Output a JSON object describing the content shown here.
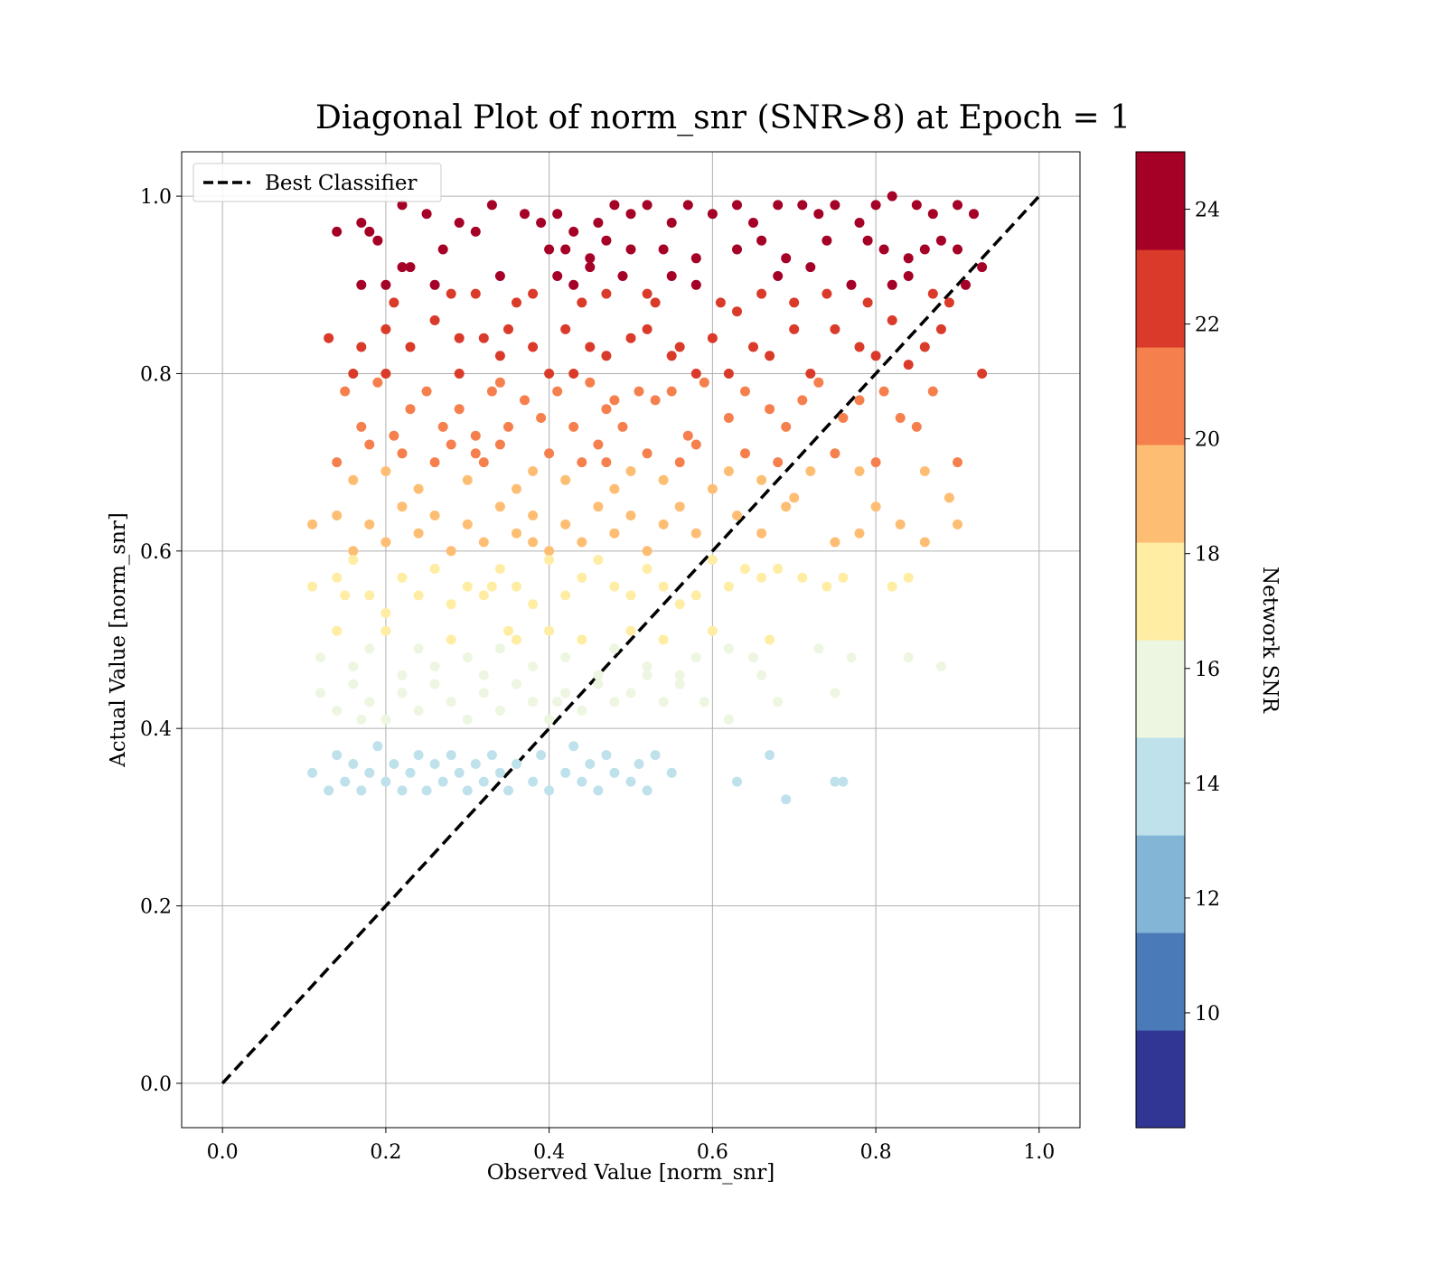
{
  "chart_data": {
    "type": "scatter",
    "title": "Diagonal Plot of norm_snr (SNR>8) at Epoch = 1",
    "xlabel": "Observed Value [norm_snr]",
    "ylabel": "Actual Value [norm_snr]",
    "xlim": [
      -0.05,
      1.05
    ],
    "ylim": [
      -0.05,
      1.05
    ],
    "x_ticks": [
      "0.0",
      "0.2",
      "0.4",
      "0.6",
      "0.8",
      "1.0"
    ],
    "y_ticks": [
      "0.0",
      "0.2",
      "0.4",
      "0.6",
      "0.8",
      "1.0"
    ],
    "grid": true,
    "legend": {
      "placement": "top-left",
      "entries": [
        {
          "label": "Best Classifier",
          "style": "dashed",
          "color": "#000000"
        }
      ]
    },
    "reference_line": {
      "name": "Best Classifier",
      "x": [
        0.0,
        1.0
      ],
      "y": [
        0.0,
        1.0
      ],
      "style": "dashed"
    },
    "colorbar": {
      "label": "Network SNR",
      "range": [
        8,
        25
      ],
      "ticks": [
        "10",
        "12",
        "14",
        "16",
        "18",
        "20",
        "22",
        "24"
      ],
      "tick_values": [
        10,
        12,
        14,
        16,
        18,
        20,
        22,
        24
      ],
      "colors": [
        "#313695",
        "#4575b4",
        "#74add1",
        "#abd9e9",
        "#e0f3f8",
        "#fee090",
        "#fdae61",
        "#f46d43",
        "#d73027",
        "#a50026"
      ],
      "display_colors": [
        "#313695",
        "#4a7ab8",
        "#82b5d6",
        "#bee1ec",
        "#edf6e0",
        "#feeda3",
        "#fdbe74",
        "#f5804e",
        "#da3a2a",
        "#a50026"
      ]
    },
    "points": [
      [
        0.14,
        0.96
      ],
      [
        0.17,
        0.97
      ],
      [
        0.18,
        0.96
      ],
      [
        0.22,
        0.99
      ],
      [
        0.25,
        0.98
      ],
      [
        0.27,
        0.94
      ],
      [
        0.29,
        0.97
      ],
      [
        0.31,
        0.96
      ],
      [
        0.33,
        0.99
      ],
      [
        0.37,
        0.98
      ],
      [
        0.39,
        0.97
      ],
      [
        0.41,
        0.98
      ],
      [
        0.43,
        0.96
      ],
      [
        0.46,
        0.97
      ],
      [
        0.48,
        0.99
      ],
      [
        0.5,
        0.98
      ],
      [
        0.52,
        0.99
      ],
      [
        0.55,
        0.97
      ],
      [
        0.57,
        0.99
      ],
      [
        0.6,
        0.98
      ],
      [
        0.63,
        0.99
      ],
      [
        0.65,
        0.97
      ],
      [
        0.68,
        0.99
      ],
      [
        0.71,
        0.99
      ],
      [
        0.73,
        0.98
      ],
      [
        0.75,
        0.99
      ],
      [
        0.78,
        0.97
      ],
      [
        0.8,
        0.99
      ],
      [
        0.82,
        1.0
      ],
      [
        0.85,
        0.99
      ],
      [
        0.87,
        0.98
      ],
      [
        0.9,
        0.99
      ],
      [
        0.92,
        0.98
      ],
      [
        0.4,
        0.94
      ],
      [
        0.42,
        0.94
      ],
      [
        0.45,
        0.93
      ],
      [
        0.5,
        0.94
      ],
      [
        0.54,
        0.94
      ],
      [
        0.58,
        0.93
      ],
      [
        0.63,
        0.94
      ],
      [
        0.69,
        0.93
      ],
      [
        0.74,
        0.95
      ],
      [
        0.79,
        0.95
      ],
      [
        0.81,
        0.94
      ],
      [
        0.84,
        0.93
      ],
      [
        0.86,
        0.94
      ],
      [
        0.88,
        0.95
      ],
      [
        0.9,
        0.94
      ],
      [
        0.19,
        0.95
      ],
      [
        0.47,
        0.95
      ],
      [
        0.66,
        0.95
      ],
      [
        0.17,
        0.9
      ],
      [
        0.2,
        0.9
      ],
      [
        0.22,
        0.92
      ],
      [
        0.23,
        0.92
      ],
      [
        0.26,
        0.9
      ],
      [
        0.28,
        0.89
      ],
      [
        0.31,
        0.89
      ],
      [
        0.34,
        0.91
      ],
      [
        0.36,
        0.88
      ],
      [
        0.38,
        0.89
      ],
      [
        0.41,
        0.91
      ],
      [
        0.43,
        0.9
      ],
      [
        0.45,
        0.92
      ],
      [
        0.47,
        0.89
      ],
      [
        0.49,
        0.91
      ],
      [
        0.52,
        0.89
      ],
      [
        0.55,
        0.91
      ],
      [
        0.58,
        0.9
      ],
      [
        0.61,
        0.88
      ],
      [
        0.63,
        0.87
      ],
      [
        0.66,
        0.89
      ],
      [
        0.68,
        0.91
      ],
      [
        0.7,
        0.88
      ],
      [
        0.72,
        0.92
      ],
      [
        0.74,
        0.89
      ],
      [
        0.77,
        0.9
      ],
      [
        0.79,
        0.88
      ],
      [
        0.82,
        0.9
      ],
      [
        0.84,
        0.91
      ],
      [
        0.87,
        0.89
      ],
      [
        0.89,
        0.88
      ],
      [
        0.91,
        0.9
      ],
      [
        0.93,
        0.92
      ],
      [
        0.21,
        0.88
      ],
      [
        0.44,
        0.88
      ],
      [
        0.53,
        0.88
      ],
      [
        0.13,
        0.84
      ],
      [
        0.16,
        0.8
      ],
      [
        0.17,
        0.83
      ],
      [
        0.2,
        0.85
      ],
      [
        0.23,
        0.83
      ],
      [
        0.26,
        0.86
      ],
      [
        0.29,
        0.84
      ],
      [
        0.32,
        0.84
      ],
      [
        0.35,
        0.85
      ],
      [
        0.38,
        0.83
      ],
      [
        0.4,
        0.8
      ],
      [
        0.42,
        0.85
      ],
      [
        0.45,
        0.83
      ],
      [
        0.47,
        0.82
      ],
      [
        0.5,
        0.84
      ],
      [
        0.52,
        0.85
      ],
      [
        0.55,
        0.82
      ],
      [
        0.58,
        0.8
      ],
      [
        0.6,
        0.84
      ],
      [
        0.62,
        0.8
      ],
      [
        0.65,
        0.83
      ],
      [
        0.67,
        0.82
      ],
      [
        0.7,
        0.85
      ],
      [
        0.72,
        0.8
      ],
      [
        0.75,
        0.85
      ],
      [
        0.78,
        0.83
      ],
      [
        0.8,
        0.82
      ],
      [
        0.82,
        0.86
      ],
      [
        0.84,
        0.81
      ],
      [
        0.86,
        0.83
      ],
      [
        0.88,
        0.85
      ],
      [
        0.93,
        0.8
      ],
      [
        0.2,
        0.8
      ],
      [
        0.29,
        0.8
      ],
      [
        0.34,
        0.82
      ],
      [
        0.43,
        0.8
      ],
      [
        0.56,
        0.83
      ],
      [
        0.15,
        0.78
      ],
      [
        0.17,
        0.74
      ],
      [
        0.19,
        0.79
      ],
      [
        0.21,
        0.73
      ],
      [
        0.23,
        0.76
      ],
      [
        0.25,
        0.78
      ],
      [
        0.27,
        0.74
      ],
      [
        0.29,
        0.76
      ],
      [
        0.31,
        0.73
      ],
      [
        0.33,
        0.78
      ],
      [
        0.35,
        0.74
      ],
      [
        0.37,
        0.77
      ],
      [
        0.39,
        0.75
      ],
      [
        0.41,
        0.78
      ],
      [
        0.43,
        0.74
      ],
      [
        0.45,
        0.79
      ],
      [
        0.47,
        0.76
      ],
      [
        0.49,
        0.74
      ],
      [
        0.51,
        0.78
      ],
      [
        0.53,
        0.77
      ],
      [
        0.55,
        0.78
      ],
      [
        0.57,
        0.73
      ],
      [
        0.59,
        0.79
      ],
      [
        0.62,
        0.75
      ],
      [
        0.64,
        0.78
      ],
      [
        0.67,
        0.76
      ],
      [
        0.69,
        0.74
      ],
      [
        0.71,
        0.77
      ],
      [
        0.73,
        0.79
      ],
      [
        0.76,
        0.75
      ],
      [
        0.78,
        0.77
      ],
      [
        0.81,
        0.78
      ],
      [
        0.83,
        0.75
      ],
      [
        0.85,
        0.74
      ],
      [
        0.87,
        0.78
      ],
      [
        0.48,
        0.77
      ],
      [
        0.34,
        0.79
      ],
      [
        0.14,
        0.7
      ],
      [
        0.16,
        0.68
      ],
      [
        0.18,
        0.72
      ],
      [
        0.2,
        0.69
      ],
      [
        0.22,
        0.71
      ],
      [
        0.24,
        0.67
      ],
      [
        0.26,
        0.7
      ],
      [
        0.28,
        0.72
      ],
      [
        0.3,
        0.68
      ],
      [
        0.32,
        0.7
      ],
      [
        0.34,
        0.72
      ],
      [
        0.36,
        0.67
      ],
      [
        0.38,
        0.69
      ],
      [
        0.4,
        0.71
      ],
      [
        0.42,
        0.68
      ],
      [
        0.44,
        0.7
      ],
      [
        0.46,
        0.72
      ],
      [
        0.48,
        0.67
      ],
      [
        0.5,
        0.69
      ],
      [
        0.52,
        0.71
      ],
      [
        0.54,
        0.68
      ],
      [
        0.56,
        0.7
      ],
      [
        0.58,
        0.72
      ],
      [
        0.6,
        0.67
      ],
      [
        0.62,
        0.69
      ],
      [
        0.64,
        0.71
      ],
      [
        0.66,
        0.68
      ],
      [
        0.68,
        0.7
      ],
      [
        0.7,
        0.66
      ],
      [
        0.72,
        0.69
      ],
      [
        0.75,
        0.71
      ],
      [
        0.78,
        0.69
      ],
      [
        0.8,
        0.7
      ],
      [
        0.86,
        0.69
      ],
      [
        0.9,
        0.7
      ],
      [
        0.47,
        0.7
      ],
      [
        0.31,
        0.71
      ],
      [
        0.11,
        0.63
      ],
      [
        0.14,
        0.64
      ],
      [
        0.16,
        0.6
      ],
      [
        0.18,
        0.63
      ],
      [
        0.2,
        0.61
      ],
      [
        0.22,
        0.65
      ],
      [
        0.24,
        0.62
      ],
      [
        0.26,
        0.64
      ],
      [
        0.28,
        0.6
      ],
      [
        0.3,
        0.63
      ],
      [
        0.32,
        0.61
      ],
      [
        0.34,
        0.65
      ],
      [
        0.36,
        0.62
      ],
      [
        0.38,
        0.64
      ],
      [
        0.4,
        0.6
      ],
      [
        0.42,
        0.63
      ],
      [
        0.44,
        0.61
      ],
      [
        0.46,
        0.65
      ],
      [
        0.48,
        0.62
      ],
      [
        0.5,
        0.64
      ],
      [
        0.52,
        0.6
      ],
      [
        0.54,
        0.63
      ],
      [
        0.56,
        0.65
      ],
      [
        0.58,
        0.62
      ],
      [
        0.63,
        0.64
      ],
      [
        0.66,
        0.62
      ],
      [
        0.69,
        0.65
      ],
      [
        0.75,
        0.61
      ],
      [
        0.78,
        0.62
      ],
      [
        0.8,
        0.65
      ],
      [
        0.83,
        0.63
      ],
      [
        0.86,
        0.61
      ],
      [
        0.89,
        0.66
      ],
      [
        0.9,
        0.63
      ],
      [
        0.38,
        0.61
      ],
      [
        0.11,
        0.56
      ],
      [
        0.14,
        0.57
      ],
      [
        0.16,
        0.59
      ],
      [
        0.18,
        0.55
      ],
      [
        0.2,
        0.53
      ],
      [
        0.22,
        0.57
      ],
      [
        0.24,
        0.55
      ],
      [
        0.26,
        0.58
      ],
      [
        0.28,
        0.54
      ],
      [
        0.3,
        0.56
      ],
      [
        0.32,
        0.55
      ],
      [
        0.34,
        0.58
      ],
      [
        0.36,
        0.56
      ],
      [
        0.38,
        0.54
      ],
      [
        0.4,
        0.59
      ],
      [
        0.42,
        0.55
      ],
      [
        0.44,
        0.57
      ],
      [
        0.46,
        0.59
      ],
      [
        0.48,
        0.56
      ],
      [
        0.5,
        0.55
      ],
      [
        0.52,
        0.58
      ],
      [
        0.54,
        0.56
      ],
      [
        0.56,
        0.54
      ],
      [
        0.58,
        0.55
      ],
      [
        0.6,
        0.59
      ],
      [
        0.62,
        0.56
      ],
      [
        0.64,
        0.58
      ],
      [
        0.66,
        0.57
      ],
      [
        0.68,
        0.58
      ],
      [
        0.71,
        0.57
      ],
      [
        0.74,
        0.56
      ],
      [
        0.76,
        0.57
      ],
      [
        0.82,
        0.56
      ],
      [
        0.84,
        0.57
      ],
      [
        0.15,
        0.55
      ],
      [
        0.33,
        0.56
      ],
      [
        0.12,
        0.48
      ],
      [
        0.14,
        0.51
      ],
      [
        0.16,
        0.47
      ],
      [
        0.18,
        0.49
      ],
      [
        0.2,
        0.51
      ],
      [
        0.22,
        0.46
      ],
      [
        0.24,
        0.49
      ],
      [
        0.26,
        0.47
      ],
      [
        0.28,
        0.5
      ],
      [
        0.3,
        0.48
      ],
      [
        0.32,
        0.46
      ],
      [
        0.34,
        0.49
      ],
      [
        0.36,
        0.5
      ],
      [
        0.38,
        0.47
      ],
      [
        0.4,
        0.51
      ],
      [
        0.42,
        0.48
      ],
      [
        0.44,
        0.5
      ],
      [
        0.46,
        0.46
      ],
      [
        0.48,
        0.49
      ],
      [
        0.5,
        0.51
      ],
      [
        0.52,
        0.47
      ],
      [
        0.54,
        0.5
      ],
      [
        0.56,
        0.46
      ],
      [
        0.58,
        0.48
      ],
      [
        0.6,
        0.51
      ],
      [
        0.62,
        0.49
      ],
      [
        0.65,
        0.48
      ],
      [
        0.67,
        0.5
      ],
      [
        0.73,
        0.49
      ],
      [
        0.77,
        0.48
      ],
      [
        0.84,
        0.48
      ],
      [
        0.88,
        0.47
      ],
      [
        0.35,
        0.51
      ],
      [
        0.12,
        0.44
      ],
      [
        0.14,
        0.42
      ],
      [
        0.16,
        0.45
      ],
      [
        0.18,
        0.43
      ],
      [
        0.2,
        0.41
      ],
      [
        0.22,
        0.44
      ],
      [
        0.24,
        0.42
      ],
      [
        0.26,
        0.45
      ],
      [
        0.28,
        0.43
      ],
      [
        0.3,
        0.41
      ],
      [
        0.32,
        0.44
      ],
      [
        0.34,
        0.42
      ],
      [
        0.36,
        0.45
      ],
      [
        0.38,
        0.43
      ],
      [
        0.4,
        0.41
      ],
      [
        0.42,
        0.44
      ],
      [
        0.44,
        0.42
      ],
      [
        0.46,
        0.45
      ],
      [
        0.48,
        0.43
      ],
      [
        0.5,
        0.44
      ],
      [
        0.52,
        0.46
      ],
      [
        0.54,
        0.43
      ],
      [
        0.56,
        0.45
      ],
      [
        0.59,
        0.43
      ],
      [
        0.62,
        0.41
      ],
      [
        0.66,
        0.46
      ],
      [
        0.68,
        0.43
      ],
      [
        0.75,
        0.44
      ],
      [
        0.17,
        0.41
      ],
      [
        0.41,
        0.43
      ],
      [
        0.11,
        0.35
      ],
      [
        0.13,
        0.33
      ],
      [
        0.14,
        0.37
      ],
      [
        0.15,
        0.34
      ],
      [
        0.16,
        0.36
      ],
      [
        0.17,
        0.33
      ],
      [
        0.18,
        0.35
      ],
      [
        0.19,
        0.38
      ],
      [
        0.2,
        0.34
      ],
      [
        0.21,
        0.36
      ],
      [
        0.22,
        0.33
      ],
      [
        0.23,
        0.35
      ],
      [
        0.24,
        0.37
      ],
      [
        0.25,
        0.33
      ],
      [
        0.26,
        0.36
      ],
      [
        0.27,
        0.34
      ],
      [
        0.28,
        0.37
      ],
      [
        0.29,
        0.35
      ],
      [
        0.3,
        0.33
      ],
      [
        0.31,
        0.36
      ],
      [
        0.32,
        0.34
      ],
      [
        0.33,
        0.37
      ],
      [
        0.34,
        0.35
      ],
      [
        0.35,
        0.33
      ],
      [
        0.36,
        0.36
      ],
      [
        0.38,
        0.34
      ],
      [
        0.39,
        0.37
      ],
      [
        0.4,
        0.33
      ],
      [
        0.42,
        0.35
      ],
      [
        0.43,
        0.38
      ],
      [
        0.44,
        0.34
      ],
      [
        0.45,
        0.36
      ],
      [
        0.46,
        0.33
      ],
      [
        0.47,
        0.37
      ],
      [
        0.48,
        0.35
      ],
      [
        0.5,
        0.34
      ],
      [
        0.51,
        0.36
      ],
      [
        0.52,
        0.33
      ],
      [
        0.53,
        0.37
      ],
      [
        0.55,
        0.35
      ],
      [
        0.63,
        0.34
      ],
      [
        0.67,
        0.37
      ],
      [
        0.69,
        0.32
      ],
      [
        0.75,
        0.34
      ],
      [
        0.76,
        0.34
      ]
    ]
  }
}
